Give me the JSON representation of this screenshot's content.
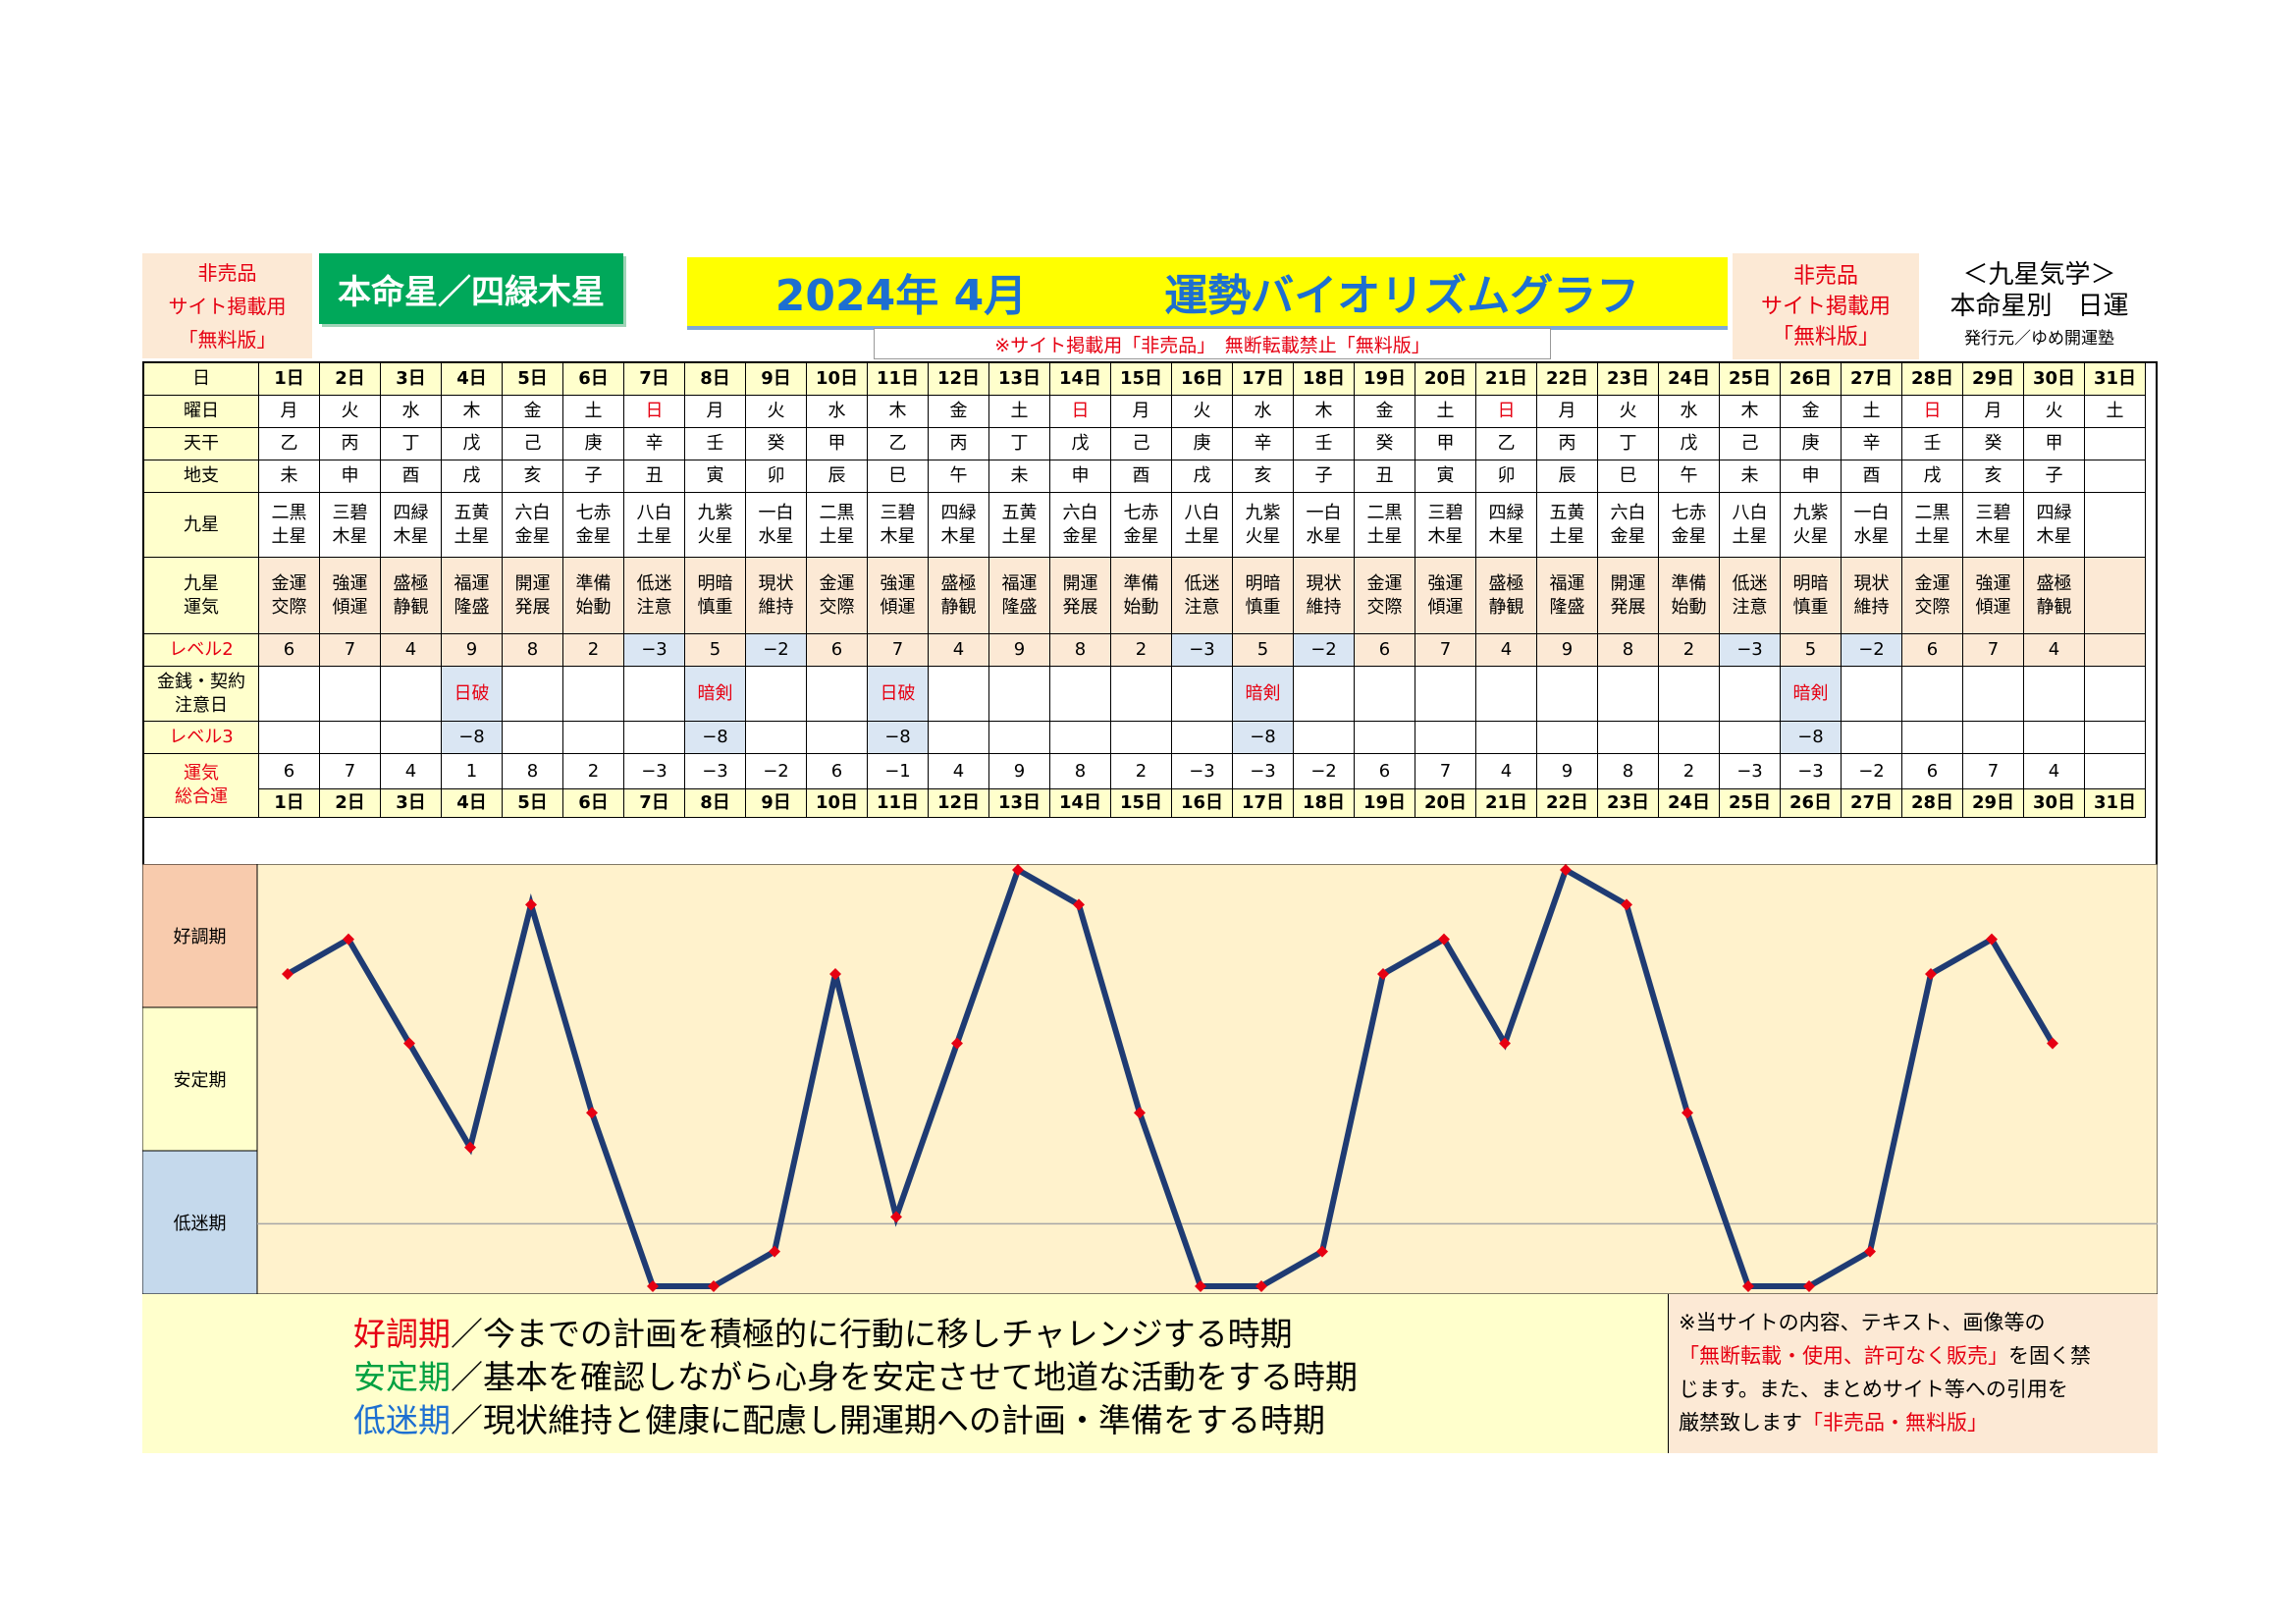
{
  "header": {
    "left_label": [
      "非売品",
      "サイト掲載用",
      "「無料版」"
    ],
    "honmei": "本命星／四緑木星",
    "title_date": "2024年 4月",
    "title_main": "運勢バイオリズムグラフ",
    "notice": "※サイト掲載用「非売品」　無断転載禁止「無料版」",
    "right_label": [
      "非売品",
      "サイト掲載用",
      "「無料版」"
    ],
    "side_1": "＜九星気学＞",
    "side_2": "本命星別　日運",
    "side_3": "発行元／ゆめ開運塾"
  },
  "row_labels": {
    "day": "日",
    "weekday": "曜日",
    "tenkan": "天干",
    "chishi": "地支",
    "kyusei": "九星",
    "kyusei_unki": "九星\n運気",
    "level2": "レベル2",
    "kinsen": "金銭・契約\n注意日",
    "level3": "レベル3",
    "sogo": "運気\n総合運"
  },
  "days": [
    "1日",
    "2日",
    "3日",
    "4日",
    "5日",
    "6日",
    "7日",
    "8日",
    "9日",
    "10日",
    "11日",
    "12日",
    "13日",
    "14日",
    "15日",
    "16日",
    "17日",
    "18日",
    "19日",
    "20日",
    "21日",
    "22日",
    "23日",
    "24日",
    "25日",
    "26日",
    "27日",
    "28日",
    "29日",
    "30日",
    "31日"
  ],
  "weekdays": [
    "月",
    "火",
    "水",
    "木",
    "金",
    "土",
    "日",
    "月",
    "火",
    "水",
    "木",
    "金",
    "土",
    "日",
    "月",
    "火",
    "水",
    "木",
    "金",
    "土",
    "日",
    "月",
    "火",
    "水",
    "木",
    "金",
    "土",
    "日",
    "月",
    "火",
    "土"
  ],
  "tenkan": [
    "乙",
    "丙",
    "丁",
    "戊",
    "己",
    "庚",
    "辛",
    "壬",
    "癸",
    "甲",
    "乙",
    "丙",
    "丁",
    "戊",
    "己",
    "庚",
    "辛",
    "壬",
    "癸",
    "甲",
    "乙",
    "丙",
    "丁",
    "戊",
    "己",
    "庚",
    "辛",
    "壬",
    "癸",
    "甲",
    ""
  ],
  "chishi": [
    "未",
    "申",
    "酉",
    "戌",
    "亥",
    "子",
    "丑",
    "寅",
    "卯",
    "辰",
    "巳",
    "午",
    "未",
    "申",
    "酉",
    "戌",
    "亥",
    "子",
    "丑",
    "寅",
    "卯",
    "辰",
    "巳",
    "午",
    "未",
    "申",
    "酉",
    "戌",
    "亥",
    "子",
    ""
  ],
  "kyusei": [
    "二黒\n土星",
    "三碧\n木星",
    "四緑\n木星",
    "五黄\n土星",
    "六白\n金星",
    "七赤\n金星",
    "八白\n土星",
    "九紫\n火星",
    "一白\n水星",
    "二黒\n土星",
    "三碧\n木星",
    "四緑\n木星",
    "五黄\n土星",
    "六白\n金星",
    "七赤\n金星",
    "八白\n土星",
    "九紫\n火星",
    "一白\n水星",
    "二黒\n土星",
    "三碧\n木星",
    "四緑\n木星",
    "五黄\n土星",
    "六白\n金星",
    "七赤\n金星",
    "八白\n土星",
    "九紫\n火星",
    "一白\n水星",
    "二黒\n土星",
    "三碧\n木星",
    "四緑\n木星",
    ""
  ],
  "unki": [
    "金運\n交際",
    "強運\n傾運",
    "盛極\n静観",
    "福運\n隆盛",
    "開運\n発展",
    "準備\n始動",
    "低迷\n注意",
    "明暗\n慎重",
    "現状\n維持",
    "金運\n交際",
    "強運\n傾運",
    "盛極\n静観",
    "福運\n隆盛",
    "開運\n発展",
    "準備\n始動",
    "低迷\n注意",
    "明暗\n慎重",
    "現状\n維持",
    "金運\n交際",
    "強運\n傾運",
    "盛極\n静観",
    "福運\n隆盛",
    "開運\n発展",
    "準備\n始動",
    "低迷\n注意",
    "明暗\n慎重",
    "現状\n維持",
    "金運\n交際",
    "強運\n傾運",
    "盛極\n静観",
    ""
  ],
  "level2": [
    "6",
    "7",
    "4",
    "9",
    "8",
    "2",
    "−3",
    "5",
    "−2",
    "6",
    "7",
    "4",
    "9",
    "8",
    "2",
    "−3",
    "5",
    "−2",
    "6",
    "7",
    "4",
    "9",
    "8",
    "2",
    "−3",
    "5",
    "−2",
    "6",
    "7",
    "4",
    ""
  ],
  "kinsen": [
    "",
    "",
    "",
    "日破",
    "",
    "",
    "",
    "暗剣",
    "",
    "",
    "日破",
    "",
    "",
    "",
    "",
    "",
    "暗剣",
    "",
    "",
    "",
    "",
    "",
    "",
    "",
    "",
    "暗剣",
    "",
    "",
    "",
    "",
    ""
  ],
  "level3": [
    "",
    "",
    "",
    "−8",
    "",
    "",
    "",
    "−8",
    "",
    "",
    "−8",
    "",
    "",
    "",
    "",
    "",
    "−8",
    "",
    "",
    "",
    "",
    "",
    "",
    "",
    "",
    "−8",
    "",
    "",
    "",
    "",
    ""
  ],
  "sogo": [
    "6",
    "7",
    "4",
    "1",
    "8",
    "2",
    "−3",
    "−3",
    "−2",
    "6",
    "−1",
    "4",
    "9",
    "8",
    "2",
    "−3",
    "−3",
    "−2",
    "6",
    "7",
    "4",
    "9",
    "8",
    "2",
    "−3",
    "−3",
    "−2",
    "6",
    "7",
    "4",
    ""
  ],
  "zones": [
    "好調期",
    "安定期",
    "低迷期"
  ],
  "legend": [
    {
      "term": "好調期",
      "desc": "／今までの計画を積極的に行動に移しチャレンジする時期",
      "color": "#e60012"
    },
    {
      "term": "安定期",
      "desc": "／基本を確認しながら心身を安定させて地道な活動をする時期",
      "color": "#00a040"
    },
    {
      "term": "低迷期",
      "desc": "／現状維持と健康に配慮し開運期への計画・準備をする時期",
      "color": "#1d6fd1"
    }
  ],
  "notice_box": {
    "line1": "※当サイトの内容、テキスト、画像等の",
    "line2_red": "「無断転載・使用、許可なく販売」",
    "line2_rest": "を固く禁",
    "line3": "じます。また、まとめサイト等への引用を",
    "line4": "厳禁致します",
    "line4_red": "「非売品・無料版」"
  },
  "colors": {
    "label_bg": "#ffffcc",
    "unki_bg": "#fce9d5",
    "neg_bg": "#dae6f3",
    "zone_good": "#f8cbad",
    "zone_stable": "#ffffcc",
    "zone_low": "#c5d9ec",
    "line": "#1f3b73",
    "marker": "#e60012",
    "plot_bg": "#fff2cc"
  },
  "chart_data": {
    "type": "line",
    "x": [
      "1日",
      "2日",
      "3日",
      "4日",
      "5日",
      "6日",
      "7日",
      "8日",
      "9日",
      "10日",
      "11日",
      "12日",
      "13日",
      "14日",
      "15日",
      "16日",
      "17日",
      "18日",
      "19日",
      "20日",
      "21日",
      "22日",
      "23日",
      "24日",
      "25日",
      "26日",
      "27日",
      "28日",
      "29日",
      "30日",
      "31日"
    ],
    "values": [
      6,
      7,
      4,
      1,
      8,
      2,
      -3,
      -3,
      -2,
      6,
      -1,
      4,
      9,
      8,
      2,
      -3,
      -3,
      -2,
      6,
      7,
      4,
      9,
      8,
      2,
      -3,
      -3,
      -2,
      6,
      7,
      4,
      null
    ],
    "ylim": [
      -3,
      9
    ],
    "grid": false,
    "legend": "none"
  }
}
